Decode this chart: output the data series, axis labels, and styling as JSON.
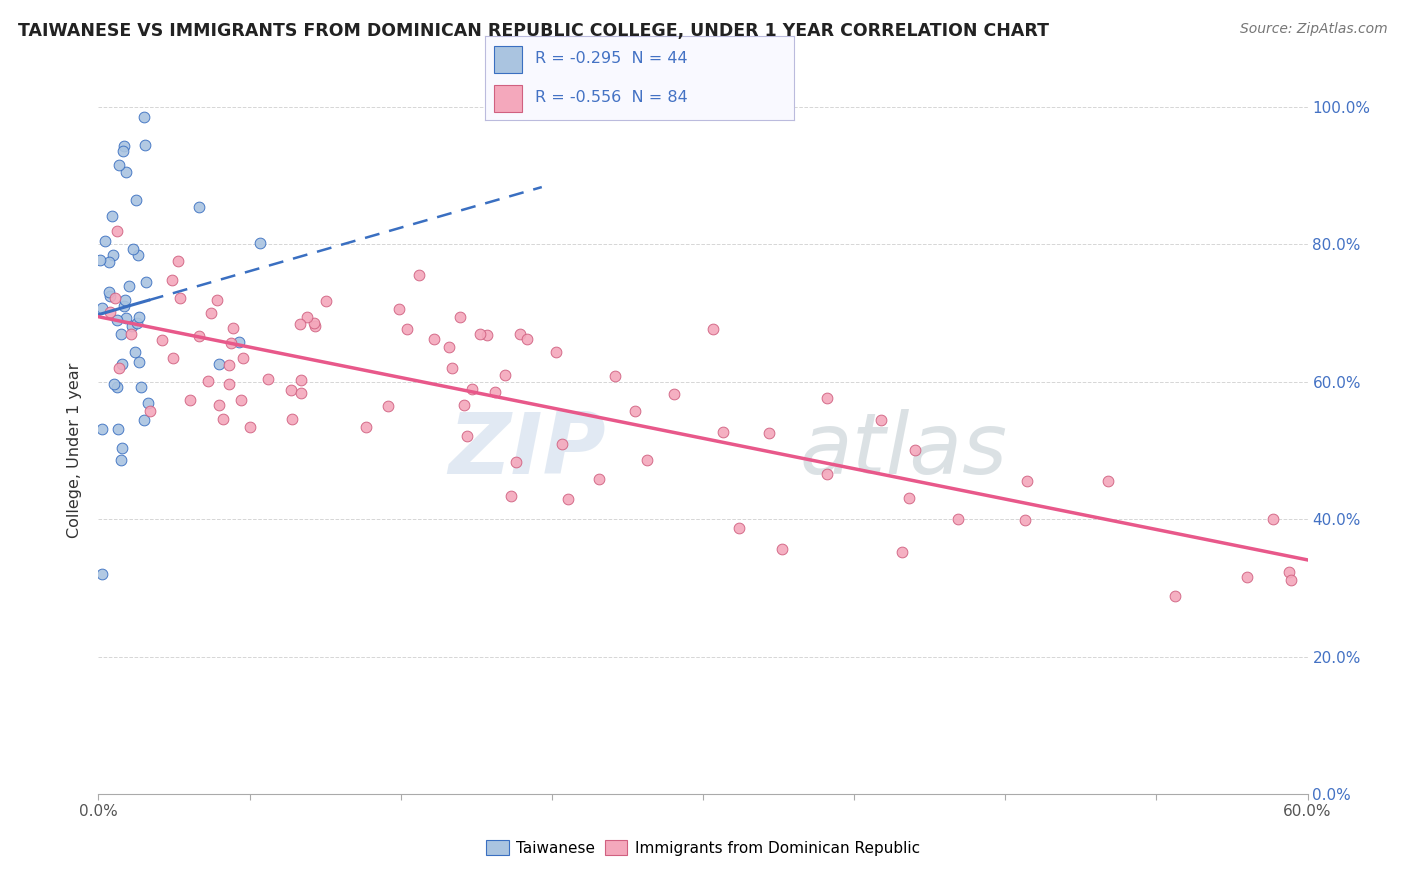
{
  "title": "TAIWANESE VS IMMIGRANTS FROM DOMINICAN REPUBLIC COLLEGE, UNDER 1 YEAR CORRELATION CHART",
  "source": "Source: ZipAtlas.com",
  "ylabel": "College, Under 1 year",
  "legend_r1": "-0.295",
  "legend_n1": "44",
  "legend_r2": "-0.556",
  "legend_n2": "84",
  "watermark_top": "ZIP",
  "watermark_bot": "atlas",
  "color_taiwanese": "#aac4e0",
  "color_dominican": "#f4a8bc",
  "color_line_taiwanese": "#3a6fc1",
  "color_line_dominican": "#e8588a",
  "xmin": 0.0,
  "xmax": 0.6,
  "ymin": 0.0,
  "ymax": 1.0,
  "right_ytick_color": "#4472c4",
  "axis_tick_color": "#888888",
  "grid_color": "#cccccc"
}
